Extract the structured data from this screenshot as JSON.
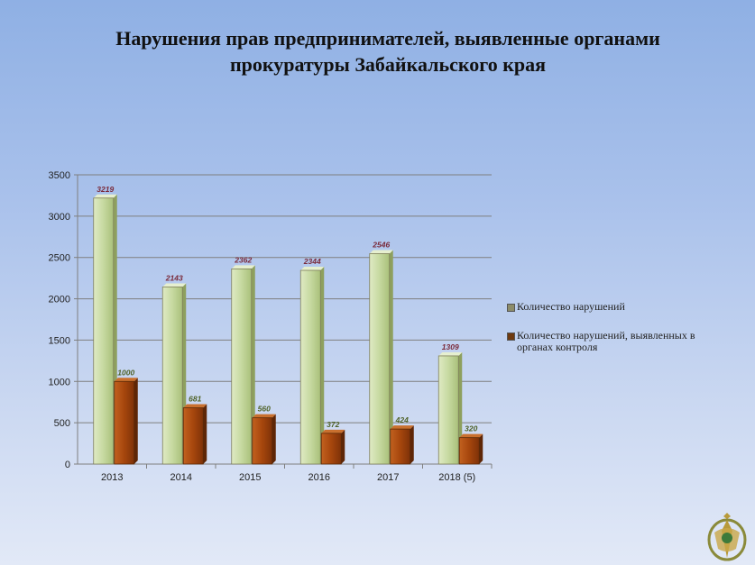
{
  "title_line1": "Нарушения прав предпринимателей, выявленные органами",
  "title_line2": "прокуратуры  Забайкальского края",
  "chart_data": {
    "type": "bar",
    "categories": [
      "2013",
      "2014",
      "2015",
      "2016",
      "2017",
      "2018 (5)"
    ],
    "series": [
      {
        "name": "Количество нарушений",
        "values": [
          3219,
          2143,
          2362,
          2344,
          2546,
          1309
        ],
        "color": "#c6d9a0",
        "label_color": "#7a2a3a"
      },
      {
        "name": "Количество нарушений, выявленных  в органах контроля",
        "values": [
          1000,
          681,
          560,
          372,
          424,
          320
        ],
        "color": "#a6460d",
        "label_color": "#4f6228"
      }
    ],
    "ylim": [
      0,
      3500
    ],
    "yticks": [
      0,
      500,
      1000,
      1500,
      2000,
      2500,
      3000,
      3500
    ],
    "grid": true,
    "legend_position": "right"
  }
}
